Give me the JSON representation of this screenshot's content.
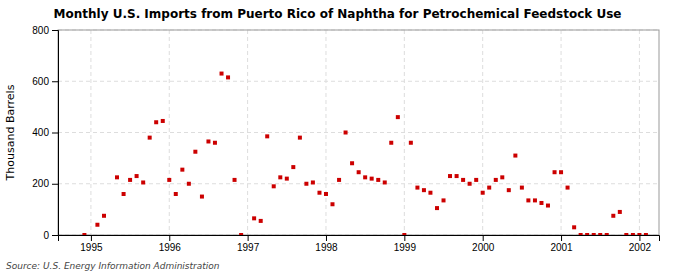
{
  "chart_data": {
    "type": "scatter",
    "title": "Monthly U.S. Imports from Puerto Rico of Naphtha for Petrochemical Feedstock Use",
    "ylabel": "Thousand Barrels",
    "annotations": [
      "Source: U.S. Energy Information Administration"
    ],
    "color": "#cc0000",
    "marker": "square",
    "grid": true,
    "xlim": [
      1994.58,
      2002.25
    ],
    "xticks": [
      1995,
      1996,
      1997,
      1998,
      1999,
      2000,
      2001,
      2002
    ],
    "ylim": [
      0,
      800
    ],
    "yticks": [
      0,
      200,
      400,
      600,
      800
    ],
    "x": [
      1994.917,
      1995.083,
      1995.167,
      1995.333,
      1995.417,
      1995.5,
      1995.583,
      1995.667,
      1995.75,
      1995.833,
      1995.917,
      1996.0,
      1996.083,
      1996.167,
      1996.25,
      1996.333,
      1996.417,
      1996.5,
      1996.583,
      1996.667,
      1996.75,
      1996.833,
      1996.917,
      1997.083,
      1997.167,
      1997.25,
      1997.333,
      1997.417,
      1997.5,
      1997.583,
      1997.667,
      1997.75,
      1997.833,
      1997.917,
      1998.0,
      1998.083,
      1998.167,
      1998.25,
      1998.333,
      1998.417,
      1998.5,
      1998.583,
      1998.667,
      1998.75,
      1998.833,
      1998.917,
      1999.0,
      1999.083,
      1999.167,
      1999.25,
      1999.333,
      1999.417,
      1999.5,
      1999.583,
      1999.667,
      1999.75,
      1999.833,
      1999.917,
      2000.0,
      2000.083,
      2000.167,
      2000.25,
      2000.333,
      2000.417,
      2000.5,
      2000.583,
      2000.667,
      2000.75,
      2000.833,
      2000.917,
      2001.0,
      2001.083,
      2001.167,
      2001.25,
      2001.333,
      2001.417,
      2001.5,
      2001.583,
      2001.667,
      2001.75,
      2001.833,
      2001.917,
      2002.0,
      2002.083
    ],
    "values": [
      0,
      40,
      75,
      225,
      160,
      215,
      230,
      205,
      380,
      440,
      445,
      215,
      160,
      255,
      200,
      325,
      150,
      365,
      360,
      630,
      615,
      215,
      0,
      65,
      55,
      385,
      190,
      225,
      220,
      265,
      380,
      200,
      205,
      165,
      160,
      120,
      215,
      400,
      280,
      245,
      225,
      220,
      215,
      205,
      360,
      460,
      0,
      360,
      185,
      175,
      165,
      105,
      135,
      230,
      230,
      215,
      200,
      215,
      165,
      185,
      215,
      225,
      175,
      310,
      185,
      135,
      135,
      125,
      115,
      245,
      245,
      185,
      30,
      0,
      0,
      0,
      0,
      0,
      75,
      90,
      0,
      0,
      0,
      0
    ]
  }
}
